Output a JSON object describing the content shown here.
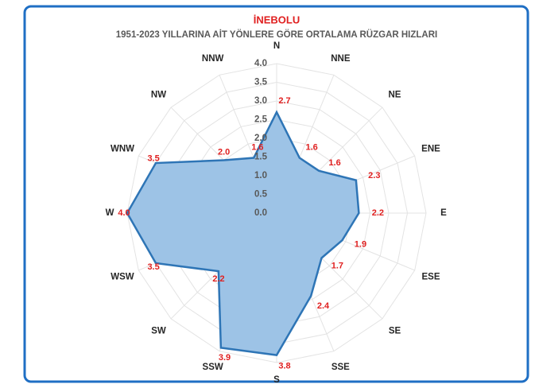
{
  "chart_data": {
    "type": "radar",
    "title": "İNEBOLU",
    "subtitle": "1951-2023 YILLARINA AİT YÖNLERE GÖRE ORTALAMA RÜZGAR HIZLARI",
    "categories": [
      "N",
      "NNE",
      "NE",
      "ENE",
      "E",
      "ESE",
      "SE",
      "SSE",
      "S",
      "SSW",
      "SW",
      "WSW",
      "W",
      "WNW",
      "NW",
      "NNW"
    ],
    "values": [
      2.7,
      1.6,
      1.6,
      2.3,
      2.2,
      1.9,
      1.7,
      2.4,
      3.8,
      3.9,
      2.2,
      3.5,
      4.0,
      3.5,
      2.0,
      1.6
    ],
    "value_labels": [
      "2.7",
      "1.6",
      "1.6",
      "2.3",
      "2.2",
      "1.9",
      "1.7",
      "2.4",
      "3.8",
      "3.9",
      "2.2",
      "3.5",
      "4.0",
      "3.5",
      "2.0",
      "1.6"
    ],
    "color": "#9dc3e6",
    "line_color": "#2e75b6",
    "ylim": [
      0,
      4
    ],
    "yticks": [
      {
        "value": 0,
        "label": "0.0"
      },
      0.5,
      {
        "value": 1,
        "label": "1.0"
      },
      1.5,
      {
        "value": 2,
        "label": "2.0"
      },
      2.5,
      {
        "value": 3,
        "label": "3.0"
      },
      3.5,
      {
        "value": 4,
        "label": "4.0"
      }
    ],
    "grid": true
  }
}
